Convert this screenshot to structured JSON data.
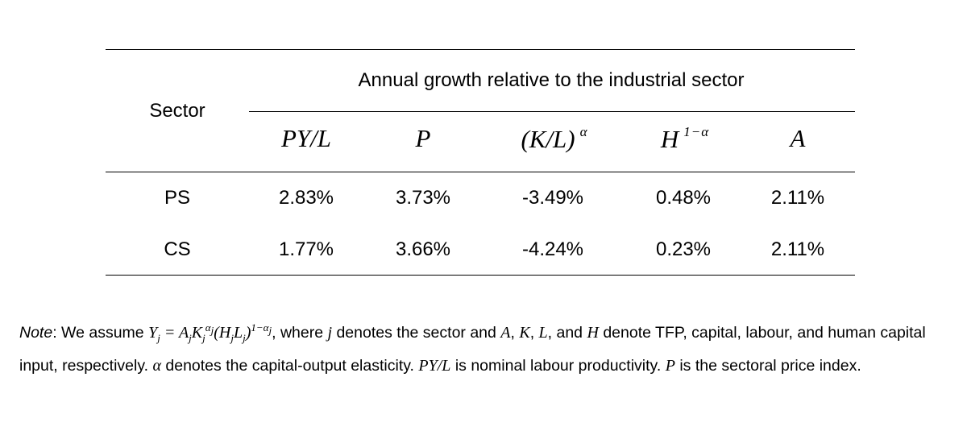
{
  "table": {
    "row_header_label": "Sector",
    "group_header": "Annual growth relative to the industrial sector",
    "columns": [
      {
        "base": "PY/L",
        "sup": ""
      },
      {
        "base": "P",
        "sup": ""
      },
      {
        "base": "(K/L)",
        "sup": "α"
      },
      {
        "base": "H",
        "sup": "1−α"
      },
      {
        "base": "A",
        "sup": ""
      }
    ],
    "rows": [
      {
        "sector": "PS",
        "values": [
          "2.83%",
          "3.73%",
          "-3.49%",
          "0.48%",
          "2.11%"
        ]
      },
      {
        "sector": "CS",
        "values": [
          "1.77%",
          "3.66%",
          "-4.24%",
          "0.23%",
          "2.11%"
        ]
      }
    ]
  },
  "note": {
    "label": "Note",
    "t1": ": We assume ",
    "t2": ", where ",
    "t3": " denotes the sector and ",
    "t4": " and ",
    "t5": " denote TFP, capital, labour, and human capital input, respectively. ",
    "t6": " denotes the capital-output elasticity. ",
    "t7": " is nominal labour productivity. ",
    "t8": " is the sectoral price index.",
    "sym_j": "j",
    "sym_A": "A",
    "sym_K": "K",
    "sym_L": "L",
    "sym_H": "H",
    "sym_alpha": "α",
    "sym_PYL": "PY/L",
    "sym_P": "P",
    "sep": ", "
  }
}
